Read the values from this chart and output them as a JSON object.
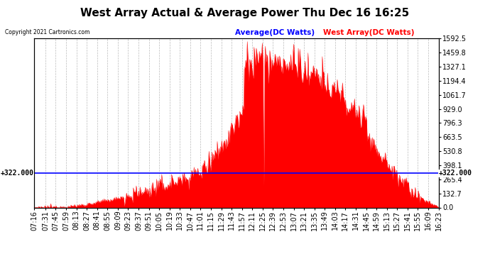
{
  "title": "West Array Actual & Average Power Thu Dec 16 16:25",
  "copyright": "Copyright 2021 Cartronics.com",
  "legend_avg": "Average(DC Watts)",
  "legend_west": "West Array(DC Watts)",
  "ymin": 0.0,
  "ymax": 1592.5,
  "yticks": [
    0.0,
    132.7,
    265.4,
    398.1,
    530.8,
    663.5,
    796.3,
    929.0,
    1061.7,
    1194.4,
    1327.1,
    1459.8,
    1592.5
  ],
  "ytick_labels": [
    "0.0",
    "132.7",
    "265.4",
    "398.1",
    "530.8",
    "663.5",
    "796.3",
    "929.0",
    "1061.7",
    "1194.4",
    "1327.1",
    "1459.8",
    "1592.5"
  ],
  "avg_line_y": 322.0,
  "avg_line_label": "+322.000",
  "fill_color": "#ff0000",
  "avg_color": "#0000ff",
  "background_color": "#ffffff",
  "grid_color": "#bbbbbb",
  "title_fontsize": 11,
  "tick_fontsize": 7,
  "xtick_labels": [
    "07:16",
    "07:31",
    "07:45",
    "07:59",
    "08:13",
    "08:27",
    "08:41",
    "08:55",
    "09:09",
    "09:23",
    "09:37",
    "09:51",
    "10:05",
    "10:19",
    "10:33",
    "10:47",
    "11:01",
    "11:15",
    "11:29",
    "11:43",
    "11:57",
    "12:11",
    "12:25",
    "12:39",
    "12:53",
    "13:07",
    "13:21",
    "13:35",
    "13:49",
    "14:03",
    "14:17",
    "14:31",
    "14:45",
    "14:59",
    "15:13",
    "15:27",
    "15:41",
    "15:55",
    "16:09",
    "16:23"
  ]
}
